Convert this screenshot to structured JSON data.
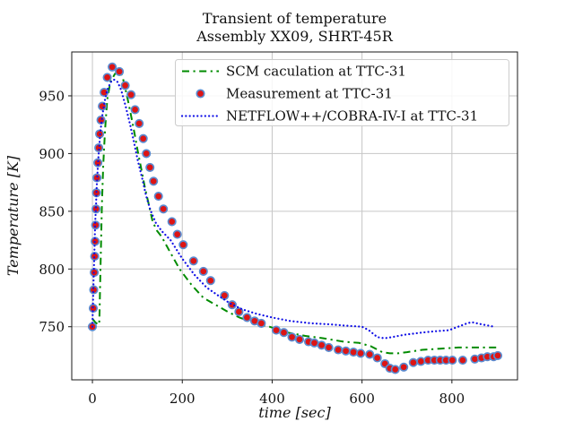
{
  "chart_data": {
    "type": "line",
    "title": "Transient of temperature",
    "subtitle": "Assembly XX09, SHRT-45R",
    "xlabel": "time [sec]",
    "ylabel": "Temperature [K]",
    "xlim": [
      -46,
      946
    ],
    "ylim": [
      704,
      988
    ],
    "xticks": [
      0,
      200,
      400,
      600,
      800
    ],
    "yticks": [
      750,
      800,
      850,
      900,
      950
    ],
    "grid": true,
    "legend_position": "upper right",
    "series": [
      {
        "name": "SCM caculation at TTC-31",
        "kind": "line",
        "style": "dashdot",
        "color": "#008b00",
        "points": [
          [
            0,
            757
          ],
          [
            6,
            754
          ],
          [
            12,
            752
          ],
          [
            15,
            752
          ],
          [
            16,
            765
          ],
          [
            17,
            785
          ],
          [
            19,
            820
          ],
          [
            21,
            855
          ],
          [
            24,
            890
          ],
          [
            28,
            920
          ],
          [
            33,
            947
          ],
          [
            40,
            962
          ],
          [
            50,
            969
          ],
          [
            58,
            971
          ],
          [
            63,
            970
          ],
          [
            68,
            965
          ],
          [
            77,
            950
          ],
          [
            86,
            933
          ],
          [
            94,
            917
          ],
          [
            101,
            902
          ],
          [
            109,
            886
          ],
          [
            117,
            870
          ],
          [
            126,
            855
          ],
          [
            134,
            841
          ],
          [
            144,
            833
          ],
          [
            154,
            828
          ],
          [
            171,
            816
          ],
          [
            194,
            800
          ],
          [
            221,
            786
          ],
          [
            247,
            775
          ],
          [
            274,
            769
          ],
          [
            301,
            763
          ],
          [
            327,
            758
          ],
          [
            361,
            753
          ],
          [
            394,
            750
          ],
          [
            434,
            745
          ],
          [
            474,
            742
          ],
          [
            514,
            740
          ],
          [
            560,
            737
          ],
          [
            594,
            736
          ],
          [
            620,
            733
          ],
          [
            645,
            728
          ],
          [
            662,
            727
          ],
          [
            680,
            727
          ],
          [
            700,
            728
          ],
          [
            734,
            730
          ],
          [
            774,
            731
          ],
          [
            814,
            732
          ],
          [
            854,
            732
          ],
          [
            900,
            732
          ]
        ]
      },
      {
        "name": "Measurement at TTC-31",
        "kind": "scatter",
        "style": "circle",
        "color": "#dd1414",
        "edge_color": "#5b8bd0",
        "points": [
          [
            0,
            750
          ],
          [
            2,
            766
          ],
          [
            3,
            782
          ],
          [
            4,
            797
          ],
          [
            5,
            811
          ],
          [
            6,
            824
          ],
          [
            7,
            838
          ],
          [
            8,
            852
          ],
          [
            9,
            866
          ],
          [
            10,
            879
          ],
          [
            12,
            892
          ],
          [
            14,
            905
          ],
          [
            16,
            917
          ],
          [
            19,
            929
          ],
          [
            22,
            941
          ],
          [
            26,
            953
          ],
          [
            33,
            966
          ],
          [
            44,
            975
          ],
          [
            60,
            971
          ],
          [
            73,
            959
          ],
          [
            86,
            951
          ],
          [
            95,
            938
          ],
          [
            104,
            926
          ],
          [
            113,
            913
          ],
          [
            120,
            900
          ],
          [
            128,
            888
          ],
          [
            136,
            876
          ],
          [
            147,
            863
          ],
          [
            158,
            852
          ],
          [
            177,
            841
          ],
          [
            189,
            830
          ],
          [
            202,
            821
          ],
          [
            225,
            807
          ],
          [
            247,
            798
          ],
          [
            263,
            790
          ],
          [
            294,
            777
          ],
          [
            311,
            769
          ],
          [
            326,
            763
          ],
          [
            344,
            758
          ],
          [
            361,
            755
          ],
          [
            376,
            753
          ],
          [
            409,
            747
          ],
          [
            426,
            745
          ],
          [
            444,
            741
          ],
          [
            461,
            739
          ],
          [
            481,
            737
          ],
          [
            494,
            736
          ],
          [
            510,
            734
          ],
          [
            526,
            732
          ],
          [
            547,
            730
          ],
          [
            564,
            729
          ],
          [
            581,
            728
          ],
          [
            597,
            727
          ],
          [
            617,
            726
          ],
          [
            634,
            723
          ],
          [
            651,
            718
          ],
          [
            662,
            714
          ],
          [
            674,
            713
          ],
          [
            693,
            715
          ],
          [
            714,
            719
          ],
          [
            731,
            720
          ],
          [
            747,
            721
          ],
          [
            761,
            721
          ],
          [
            774,
            721
          ],
          [
            787,
            721
          ],
          [
            801,
            721
          ],
          [
            824,
            721
          ],
          [
            851,
            722
          ],
          [
            866,
            723
          ],
          [
            879,
            724
          ],
          [
            893,
            724
          ],
          [
            902,
            725
          ]
        ]
      },
      {
        "name": "NETFLOW++/COBRA-IV-I at TTC-31",
        "kind": "line",
        "style": "dotted",
        "color": "#0f0fe6",
        "points": [
          [
            0,
            750
          ],
          [
            1,
            765
          ],
          [
            2,
            780
          ],
          [
            3,
            795
          ],
          [
            4,
            810
          ],
          [
            5,
            825
          ],
          [
            6,
            840
          ],
          [
            8,
            855
          ],
          [
            9,
            868
          ],
          [
            11,
            882
          ],
          [
            13,
            895
          ],
          [
            15,
            906
          ],
          [
            18,
            920
          ],
          [
            22,
            933
          ],
          [
            27,
            945
          ],
          [
            33,
            955
          ],
          [
            41,
            962
          ],
          [
            48,
            964
          ],
          [
            56,
            962
          ],
          [
            64,
            955
          ],
          [
            74,
            941
          ],
          [
            84,
            925
          ],
          [
            93,
            909
          ],
          [
            101,
            894
          ],
          [
            111,
            878
          ],
          [
            119,
            864
          ],
          [
            129,
            851
          ],
          [
            141,
            840
          ],
          [
            154,
            833
          ],
          [
            174,
            825
          ],
          [
            200,
            809
          ],
          [
            227,
            795
          ],
          [
            254,
            784
          ],
          [
            280,
            777
          ],
          [
            307,
            770
          ],
          [
            334,
            765
          ],
          [
            367,
            761
          ],
          [
            400,
            758
          ],
          [
            440,
            755
          ],
          [
            487,
            753
          ],
          [
            530,
            752
          ],
          [
            560,
            751
          ],
          [
            600,
            750
          ],
          [
            615,
            747
          ],
          [
            634,
            741
          ],
          [
            650,
            740
          ],
          [
            667,
            741
          ],
          [
            694,
            743
          ],
          [
            734,
            745
          ],
          [
            760,
            746
          ],
          [
            794,
            747
          ],
          [
            807,
            749
          ],
          [
            834,
            753
          ],
          [
            844,
            754
          ],
          [
            867,
            752
          ],
          [
            894,
            750
          ]
        ]
      }
    ]
  },
  "colors": {
    "background": "#ffffff",
    "grid_gray": "#c6c6c6",
    "axis_black": "#1a1a1a",
    "legend_border": "#cccccc",
    "scm_green": "#008b00",
    "measurement_red": "#dd1414",
    "marker_edge_blue": "#5b8bd0",
    "netflow_blue": "#0f0fe6"
  }
}
